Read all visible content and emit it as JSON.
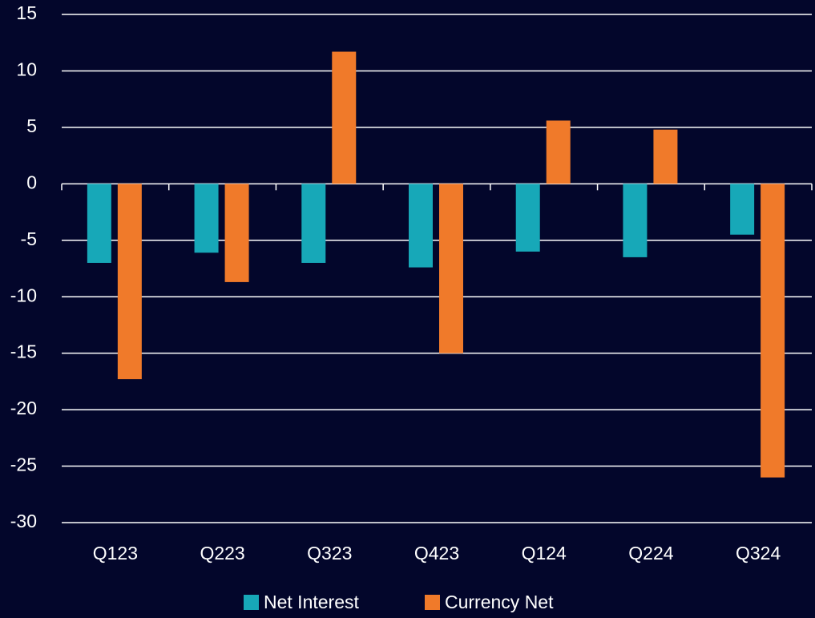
{
  "chart_data": {
    "type": "bar",
    "categories": [
      "Q123",
      "Q223",
      "Q323",
      "Q423",
      "Q124",
      "Q224",
      "Q324"
    ],
    "series": [
      {
        "name": "Net Interest",
        "color": "#17a8b8",
        "values": [
          -7.0,
          -6.1,
          -7.0,
          -7.4,
          -6.0,
          -6.5,
          -4.5
        ]
      },
      {
        "name": "Currency Net",
        "color": "#f07a2a",
        "values": [
          -17.3,
          -8.7,
          11.7,
          -15.0,
          5.6,
          4.8,
          -26.0
        ]
      }
    ],
    "ylim": [
      -30,
      15
    ],
    "yticks": [
      -30,
      -25,
      -20,
      -15,
      -10,
      -5,
      0,
      5,
      10,
      15
    ],
    "grid": true,
    "legend": "bottom"
  }
}
